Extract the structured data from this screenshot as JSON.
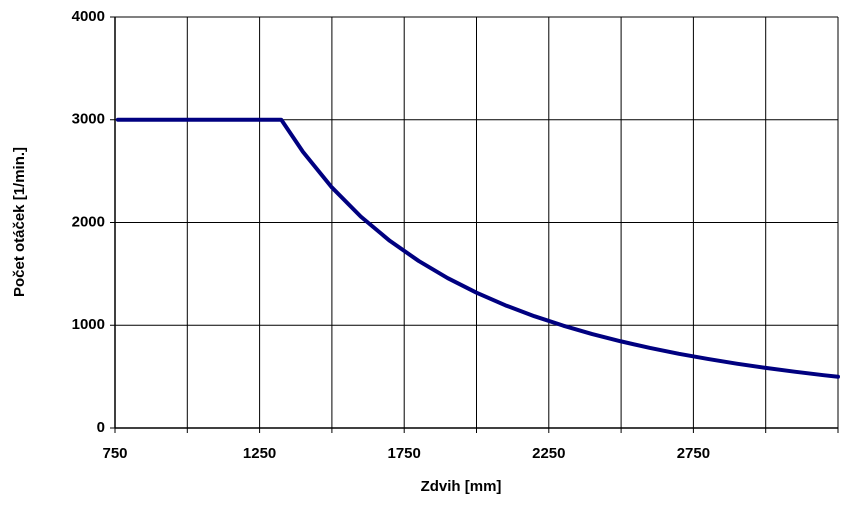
{
  "chart_data": {
    "type": "line",
    "xlabel": "Zdvih [mm]",
    "ylabel": "Počet otáček [1/min.]",
    "x": [
      760,
      1325,
      1400,
      1500,
      1600,
      1700,
      1800,
      1900,
      2000,
      2100,
      2200,
      2300,
      2400,
      2500,
      2600,
      2700,
      2800,
      2900,
      3000,
      3100,
      3200,
      3250
    ],
    "series": [
      {
        "color": "#000080",
        "values": [
          3000,
          3000,
          2687,
          2341,
          2057,
          1822,
          1626,
          1459,
          1317,
          1194,
          1088,
          996,
          914,
          843,
          779,
          722,
          672,
          626,
          585,
          548,
          514,
          499
        ]
      }
    ],
    "xlim": [
      750,
      3250
    ],
    "xticks": [
      750,
      1250,
      1750,
      2250,
      2750
    ],
    "xminorticks": [
      1000,
      1500,
      2000,
      2500,
      3000,
      3250
    ],
    "ylim": [
      0,
      4000
    ],
    "yticks": [
      0,
      1000,
      2000,
      3000,
      4000
    ],
    "grid": true
  }
}
